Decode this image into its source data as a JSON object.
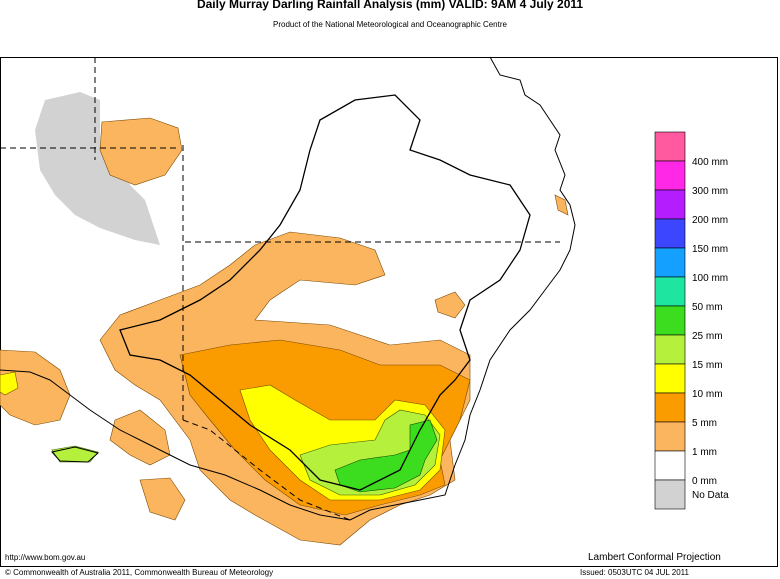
{
  "title": "Daily Murray Darling Rainfall Analysis (mm)  VALID: 9AM  4 July 2011",
  "subtitle": "Product of the National Meteorological and Oceanographic Centre",
  "legend": {
    "colors": [
      "#ff5aa0",
      "#ff28e6",
      "#b41eff",
      "#3c46ff",
      "#14a0ff",
      "#1ee6a0",
      "#3cdc1e",
      "#b4f03c",
      "#ffff00",
      "#fa9b00",
      "#fcb55f",
      "#ffffff",
      "#d2d2d2"
    ],
    "labels": [
      "400 mm",
      "300 mm",
      "200 mm",
      "150 mm",
      "100 mm",
      "50 mm",
      "25 mm",
      "15 mm",
      "10 mm",
      "5 mm",
      "1 mm",
      "0 mm",
      "No Data"
    ]
  },
  "footer": {
    "url": "http://www.bom.gov.au",
    "projection": "Lambert Conformal Projection",
    "copyright": "© Commonwealth of Australia 2011, Commonwealth Bureau of Meteorology",
    "issued": "Issued: 0503UTC 04 JUL 2011"
  }
}
